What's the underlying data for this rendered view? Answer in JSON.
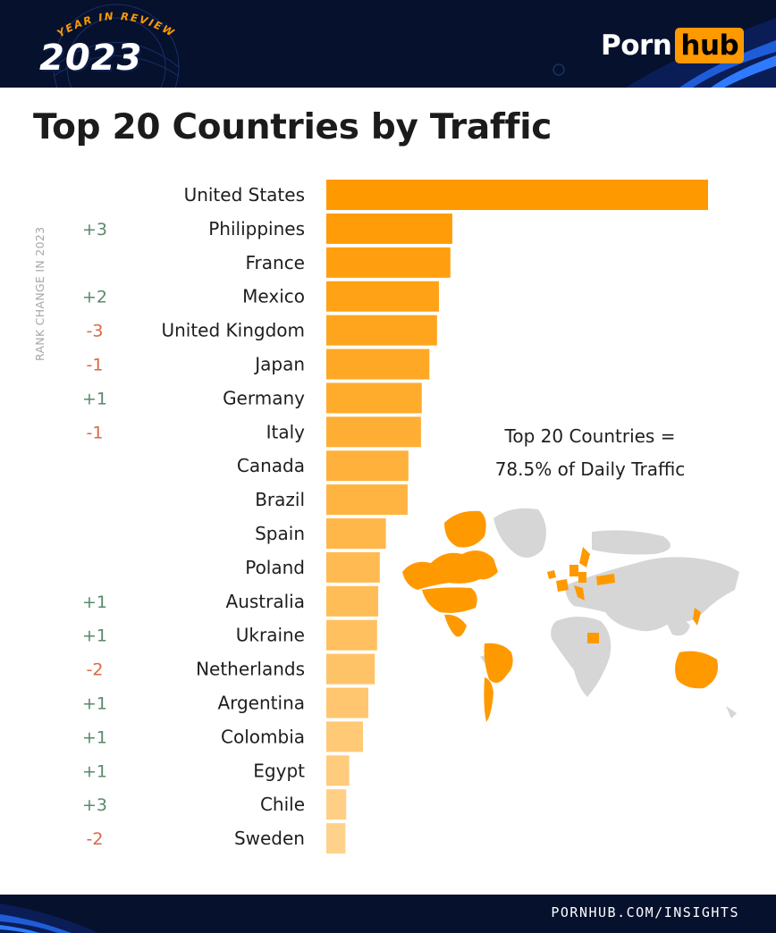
{
  "header": {
    "tagline": "YEAR IN REVIEW",
    "year": "2023",
    "logo_left": "Porn",
    "logo_right": "hub"
  },
  "title": "Top 20 Countries by Traffic",
  "annotation": {
    "line1": "Top 20 Countries =",
    "line2": "78.5% of Daily Traffic"
  },
  "footer": {
    "url": "PORNHUB.COM/INSIGHTS"
  },
  "colors": {
    "accent": "#ff9900",
    "bar_start": "#ff9900",
    "bar_end": "#ffd28c",
    "positive": "#5a8a6a",
    "negative": "#d86a44",
    "navy": "#06112e",
    "map_grey": "#d6d6d6"
  },
  "chart_data": {
    "type": "bar",
    "orientation": "horizontal",
    "title": "Top 20 Countries by Traffic",
    "rank_change_label": "RANK CHANGE IN 2023",
    "categories": [
      "United States",
      "Philippines",
      "France",
      "Mexico",
      "United Kingdom",
      "Japan",
      "Germany",
      "Italy",
      "Canada",
      "Brazil",
      "Spain",
      "Poland",
      "Australia",
      "Ukraine",
      "Netherlands",
      "Argentina",
      "Colombia",
      "Egypt",
      "Chile",
      "Sweden"
    ],
    "values": [
      100,
      33,
      32.5,
      29.5,
      29,
      27,
      25,
      24.8,
      21.5,
      21.3,
      15.6,
      14,
      13.6,
      13.3,
      12.7,
      11,
      9.6,
      6,
      5.2,
      5
    ],
    "value_note": "relative traffic (United States = 100), estimated from bar lengths",
    "rank_change": [
      "",
      "+3",
      "",
      "+2",
      "-3",
      "-1",
      "+1",
      "-1",
      "",
      "",
      "",
      "",
      "+1",
      "+1",
      "-2",
      "+1",
      "+1",
      "+1",
      "+3",
      "-2"
    ]
  }
}
